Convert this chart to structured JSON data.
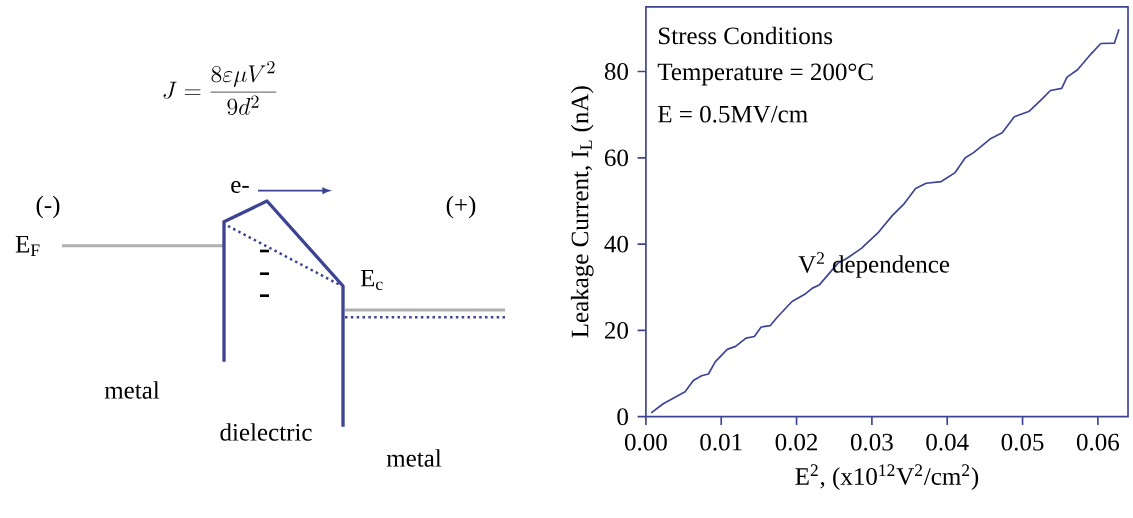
{
  "chart_data": [
    {
      "type": "other",
      "annotations": [
        "J = \\frac{8\\varepsilon\\mu V^{2}}{9d^{2}}",
        "(-)",
        "(+)",
        "E$_{F}$",
        "E$_{c}$",
        "e-",
        "metal",
        "dielectric",
        "metal"
      ]
    },
    {
      "type": "line",
      "xlabel": "E$^{2}$, (x10$^{12}$V$^{2}$/cm$^{2}$)",
      "ylabel": "Leakage Current, I$_{L}$ (nA)",
      "annotations": [
        "Stress Conditions",
        "Temperature = 200°C",
        "E = 0.5MV/cm",
        "V$^{2}$ dependence"
      ],
      "color": "#3d4494",
      "marker": "none",
      "xlim": [
        0,
        0.064
      ],
      "ylim": [
        0,
        95
      ],
      "xticks": [
        {
          "value": 0,
          "label": "0.00"
        },
        {
          "value": 0.01,
          "label": "0.01"
        },
        {
          "value": 0.02,
          "label": "0.02"
        },
        {
          "value": 0.03,
          "label": "0.03"
        },
        {
          "value": 0.04,
          "label": "0.04"
        },
        {
          "value": 0.05,
          "label": "0.05"
        },
        {
          "value": 0.06,
          "label": "0.06"
        }
      ],
      "yticks": [
        0,
        20,
        40,
        60,
        80
      ],
      "x": [
        0.0007,
        0.0023,
        0.0052,
        0.0063,
        0.0074,
        0.0083,
        0.0092,
        0.0108,
        0.0119,
        0.0133,
        0.0144,
        0.0153,
        0.0165,
        0.0174,
        0.0194,
        0.0212,
        0.0221,
        0.023,
        0.0255,
        0.0266,
        0.0286,
        0.0309,
        0.0327,
        0.0343,
        0.0358,
        0.0372,
        0.0392,
        0.041,
        0.0424,
        0.0435,
        0.0458,
        0.0473,
        0.0489,
        0.0509,
        0.0525,
        0.0537,
        0.0552,
        0.0559,
        0.0573,
        0.0591,
        0.0604,
        0.0622,
        0.0628
      ],
      "values": [
        0.9,
        3.0,
        5.8,
        8.4,
        9.5,
        9.9,
        12.7,
        15.6,
        16.3,
        18.2,
        18.6,
        20.8,
        21.1,
        23.0,
        26.7,
        28.5,
        29.8,
        30.5,
        35.6,
        36.6,
        39.0,
        42.8,
        46.6,
        49.4,
        52.9,
        54.1,
        54.5,
        56.5,
        60.0,
        61.2,
        64.5,
        65.8,
        69.5,
        70.8,
        73.5,
        75.6,
        76.1,
        78.7,
        80.4,
        84.1,
        86.5,
        86.6,
        89.8
      ]
    }
  ]
}
